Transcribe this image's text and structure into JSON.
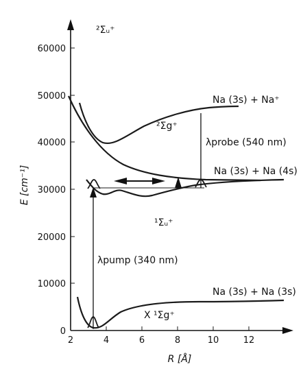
{
  "diagram": {
    "x_axis": {
      "label": "R [Å]",
      "ticks": [
        "2",
        "4",
        "6",
        "8",
        "10",
        "12"
      ]
    },
    "y_axis": {
      "label": "E [cm⁻¹]",
      "ticks": [
        "0",
        "10000",
        "20000",
        "30000",
        "40000",
        "50000",
        "60000"
      ]
    },
    "states": {
      "top": "²Σᵤ⁺",
      "ion_gerade": "²Σg⁺",
      "excited": "¹Σᵤ⁺",
      "ground": "X ¹Σg⁺"
    },
    "asymptotes": {
      "ion": "Na (3s) + Na⁺",
      "excited": "Na (3s) + Na (4s)",
      "ground": "Na (3s) + Na (3s)"
    },
    "lasers": {
      "probe": "λprobe (540 nm)",
      "pump": "λpump (340 nm)"
    }
  }
}
